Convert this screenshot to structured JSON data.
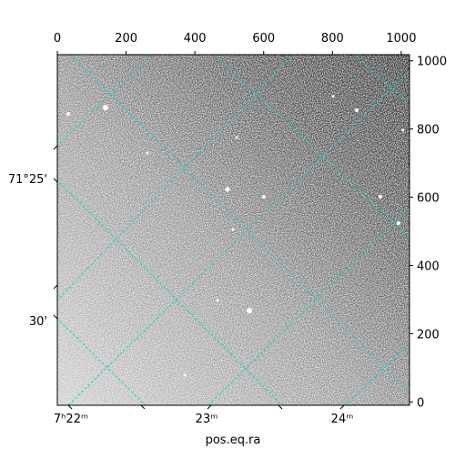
{
  "chart_data": {
    "type": "image",
    "xlabel": "pos.eq.ra",
    "xlim": [
      0,
      1024
    ],
    "xticks": [
      0,
      200,
      400,
      600,
      800,
      1000
    ],
    "ylim": [
      -10,
      1018
    ],
    "yticks": [
      0,
      200,
      400,
      600,
      800,
      1000
    ],
    "ra_tick_labels": [
      "7ʰ22ᵐ",
      "23ᵐ",
      "24ᵐ"
    ],
    "dec_tick_labels": [
      "71°25'",
      "30'"
    ],
    "grid": true,
    "grid_color": "#22cccc"
  }
}
